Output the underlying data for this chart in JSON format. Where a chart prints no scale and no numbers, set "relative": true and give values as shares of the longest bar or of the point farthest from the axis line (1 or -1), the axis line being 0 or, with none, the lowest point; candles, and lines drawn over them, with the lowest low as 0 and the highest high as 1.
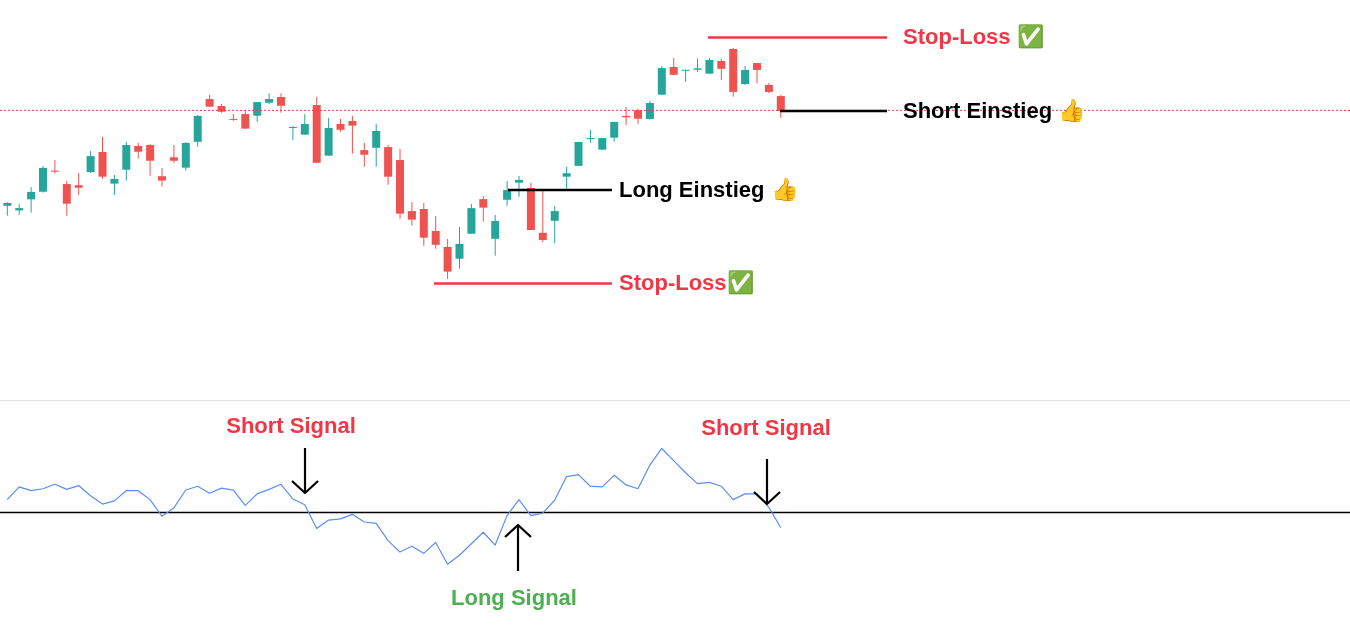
{
  "chart_data": [
    {
      "type": "candlestick",
      "relative": true,
      "categories": [
        null,
        null,
        null,
        null,
        null,
        null,
        null,
        null,
        null,
        null,
        null,
        null,
        null,
        null,
        null,
        null,
        null,
        null,
        null,
        null,
        null,
        null,
        null,
        null,
        null,
        null,
        null,
        null,
        null,
        null,
        null,
        null,
        null,
        null,
        null,
        null,
        null,
        null,
        null,
        null,
        null,
        null,
        null,
        null,
        null,
        null,
        null,
        null,
        null,
        null,
        null,
        null,
        null,
        null,
        null,
        null,
        null,
        null,
        null,
        null,
        null,
        null,
        null,
        null,
        null,
        null
      ],
      "ohlc": [
        [
          0.317,
          0.333,
          0.274,
          0.329
        ],
        [
          0.297,
          0.325,
          0.278,
          0.307
        ],
        [
          0.345,
          0.398,
          0.287,
          0.377
        ],
        [
          0.378,
          0.489,
          0.374,
          0.481
        ],
        [
          0.469,
          0.515,
          0.456,
          0.465
        ],
        [
          0.411,
          0.424,
          0.274,
          0.326
        ],
        [
          0.406,
          0.459,
          0.364,
          0.395
        ],
        [
          0.463,
          0.554,
          0.459,
          0.532
        ],
        [
          0.55,
          0.615,
          0.434,
          0.443
        ],
        [
          0.413,
          0.45,
          0.364,
          0.433
        ],
        [
          0.473,
          0.593,
          0.426,
          0.58
        ],
        [
          0.576,
          0.589,
          0.521,
          0.551
        ],
        [
          0.58,
          0.584,
          0.447,
          0.512
        ],
        [
          0.445,
          0.481,
          0.4,
          0.426
        ],
        [
          0.527,
          0.58,
          0.503,
          0.512
        ],
        [
          0.482,
          0.593,
          0.469,
          0.589
        ],
        [
          0.594,
          0.71,
          0.573,
          0.706
        ],
        [
          0.779,
          0.797,
          0.746,
          0.746
        ],
        [
          0.749,
          0.758,
          0.72,
          0.724
        ],
        [
          0.693,
          0.714,
          0.685,
          0.69
        ],
        [
          0.714,
          0.729,
          0.651,
          0.651
        ],
        [
          0.707,
          0.766,
          0.681,
          0.766
        ],
        [
          0.763,
          0.804,
          0.758,
          0.779
        ],
        [
          0.788,
          0.804,
          0.72,
          0.75
        ],
        [
          0.655,
          0.662,
          0.602,
          0.658
        ],
        [
          0.625,
          0.714,
          0.625,
          0.671
        ],
        [
          0.753,
          0.788,
          0.503,
          0.503
        ],
        [
          0.534,
          0.697,
          0.534,
          0.654
        ],
        [
          0.671,
          0.693,
          0.638,
          0.646
        ],
        [
          0.684,
          0.706,
          0.542,
          0.664
        ],
        [
          0.558,
          0.589,
          0.486,
          0.538
        ],
        [
          0.568,
          0.671,
          0.486,
          0.641
        ],
        [
          0.571,
          0.58,
          0.408,
          0.443
        ],
        [
          0.515,
          0.563,
          0.261,
          0.283
        ],
        [
          0.294,
          0.333,
          0.231,
          0.257
        ],
        [
          0.303,
          0.329,
          0.144,
          0.179
        ],
        [
          0.208,
          0.273,
          0.131,
          0.148
        ],
        [
          0.139,
          0.173,
          0,
          0.032
        ],
        [
          0.088,
          0.225,
          0.045,
          0.152
        ],
        [
          0.196,
          0.325,
          0.196,
          0.307
        ],
        [
          0.346,
          0.359,
          0.248,
          0.309
        ],
        [
          0.174,
          0.277,
          0.101,
          0.251
        ],
        [
          0.343,
          0.424,
          0.317,
          0.385
        ],
        [
          0.417,
          0.446,
          0.356,
          0.429
        ],
        [
          0.394,
          0.416,
          0.212,
          0.212
        ],
        [
          0.2,
          0.385,
          0.16,
          0.169
        ],
        [
          0.252,
          0.316,
          0.155,
          0.294
        ],
        [
          0.443,
          0.486,
          0.391,
          0.458
        ],
        [
          0.49,
          0.593,
          0.49,
          0.593
        ],
        [
          0.606,
          0.645,
          0.59,
          0.61
        ],
        [
          0.56,
          0.61,
          0.56,
          0.61
        ],
        [
          0.612,
          0.68,
          0.594,
          0.68
        ],
        [
          0.706,
          0.745,
          0.667,
          0.7
        ],
        [
          0.73,
          0.737,
          0.672,
          0.694
        ],
        [
          0.693,
          0.771,
          0.69,
          0.762
        ],
        [
          0.798,
          0.922,
          0.798,
          0.913
        ],
        [
          0.918,
          0.957,
          0.884,
          0.884
        ],
        [
          0.902,
          0.906,
          0.854,
          0.906
        ],
        [
          0.906,
          0.955,
          0.897,
          0.912
        ],
        [
          0.889,
          0.957,
          0.889,
          0.948
        ],
        [
          0.944,
          0.952,
          0.861,
          0.91
        ],
        [
          0.996,
          1,
          0.789,
          0.81
        ],
        [
          0.844,
          0.922,
          0.84,
          0.905
        ],
        [
          0.935,
          0.935,
          0.848,
          0.905
        ],
        [
          0.84,
          0.848,
          0.804,
          0.81
        ],
        [
          0.792,
          0.797,
          0.697,
          0.727
        ]
      ],
      "colors": [
        "#26a69a",
        "#26a69a",
        "#26a69a",
        "#26a69a",
        "#ef5350",
        "#ef5350",
        "#ef5350",
        "#26a69a",
        "#ef5350",
        "#26a69a",
        "#26a69a",
        "#ef5350",
        "#ef5350",
        "#ef5350",
        "#ef5350",
        "#26a69a",
        "#26a69a",
        "#ef5350",
        "#ef5350",
        "#ef5350",
        "#ef5350",
        "#26a69a",
        "#26a69a",
        "#ef5350",
        "#26a69a",
        "#26a69a",
        "#ef5350",
        "#26a69a",
        "#ef5350",
        "#ef5350",
        "#ef5350",
        "#26a69a",
        "#ef5350",
        "#ef5350",
        "#ef5350",
        "#ef5350",
        "#ef5350",
        "#ef5350",
        "#26a69a",
        "#26a69a",
        "#ef5350",
        "#26a69a",
        "#26a69a",
        "#26a69a",
        "#ef5350",
        "#ef5350",
        "#26a69a",
        "#26a69a",
        "#26a69a",
        "#26a69a",
        "#26a69a",
        "#26a69a",
        "#ef5350",
        "#ef5350",
        "#26a69a",
        "#26a69a",
        "#ef5350",
        "#26a69a",
        "#26a69a",
        "#26a69a",
        "#ef5350",
        "#ef5350",
        "#26a69a",
        "#ef5350",
        "#ef5350",
        "#ef5350"
      ],
      "ref_lines": [
        {
          "axis": "y",
          "value": 0.73,
          "color": "#f23645",
          "line_style": "dotted"
        },
        {
          "axis": "y",
          "value": 1.046,
          "label": "Stop-Loss ✅",
          "color": "#f23645"
        },
        {
          "axis": "y",
          "value": 0.727,
          "label": "Short Einstieg 👍",
          "color": "#000000"
        },
        {
          "axis": "y",
          "value": 0.385,
          "label": "Long Einstieg 👍",
          "color": "#000000"
        },
        {
          "axis": "y",
          "value": -0.019,
          "label": "Stop-Loss✅",
          "color": "#f23645"
        }
      ]
    },
    {
      "type": "line",
      "relative": true,
      "color": "#5b8ef4",
      "categories": [
        null,
        null,
        null,
        null,
        null,
        null,
        null,
        null,
        null,
        null,
        null,
        null,
        null,
        null,
        null,
        null,
        null,
        null,
        null,
        null,
        null,
        null,
        null,
        null,
        null,
        null,
        null,
        null,
        null,
        null,
        null,
        null,
        null,
        null,
        null,
        null,
        null,
        null,
        null,
        null,
        null,
        null,
        null,
        null,
        null,
        null,
        null,
        null,
        null,
        null,
        null,
        null,
        null,
        null,
        null,
        null,
        null,
        null,
        null,
        null,
        null,
        null,
        null,
        null,
        null,
        null
      ],
      "values": [
        0.2,
        0.4,
        0.34,
        0.37,
        0.44,
        0.36,
        0.42,
        0.26,
        0.13,
        0.18,
        0.34,
        0.34,
        0.2,
        -0.06,
        0.07,
        0.35,
        0.41,
        0.3,
        0.38,
        0.35,
        0.11,
        0.29,
        0.36,
        0.44,
        0.21,
        0.12,
        -0.25,
        -0.12,
        -0.1,
        -0.03,
        -0.15,
        -0.17,
        -0.44,
        -0.62,
        -0.53,
        -0.64,
        -0.47,
        -0.81,
        -0.67,
        -0.49,
        -0.31,
        -0.51,
        -0.05,
        0.2,
        -0.05,
        -0.01,
        0.19,
        0.56,
        0.59,
        0.41,
        0.4,
        0.58,
        0.43,
        0.37,
        0.74,
        1,
        0.81,
        0.62,
        0.45,
        0.47,
        0.41,
        0.2,
        0.29,
        0.29,
        0.08,
        -0.24
      ],
      "annotations": [
        "Short Signal",
        "Long Signal",
        "Short Signal"
      ]
    }
  ]
}
